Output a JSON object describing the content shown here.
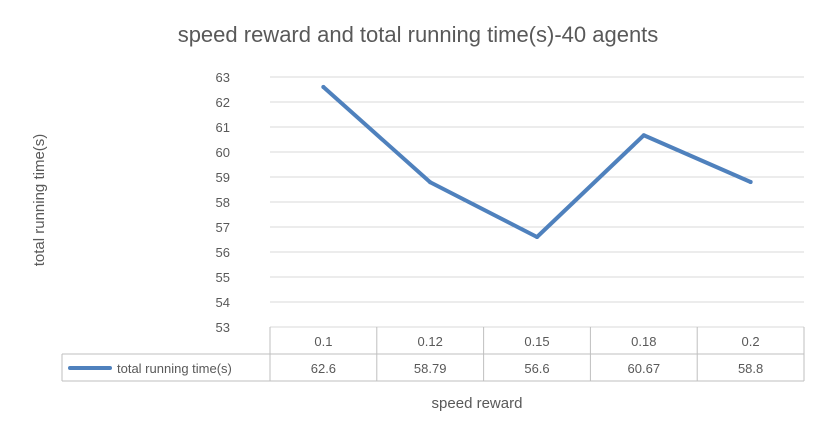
{
  "chart_data": {
    "type": "line",
    "title": "speed reward and total running time(s)-40 agents",
    "xlabel": "speed reward",
    "ylabel": "total running time(s)",
    "categories": [
      "0.1",
      "0.12",
      "0.15",
      "0.18",
      "0.2"
    ],
    "series": [
      {
        "name": "total running time(s)",
        "values": [
          62.6,
          58.79,
          56.6,
          60.67,
          58.8
        ],
        "value_labels": [
          "62.6",
          "58.79",
          "56.6",
          "60.67",
          "58.8"
        ],
        "color": "#4F81BD"
      }
    ],
    "ylim": [
      53,
      63
    ],
    "yticks": [
      "53",
      "54",
      "55",
      "56",
      "57",
      "58",
      "59",
      "60",
      "61",
      "62",
      "63"
    ],
    "grid": true,
    "legend": "data-table",
    "gridColor": "#D9D9D9",
    "borderColor": "#BFBFBF"
  }
}
